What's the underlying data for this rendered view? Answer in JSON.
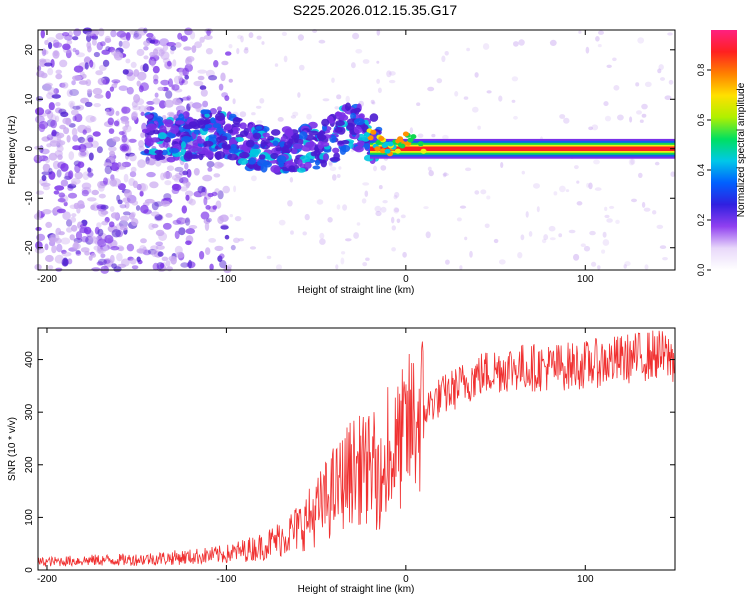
{
  "title": "S225.2026.012.15.35.G17",
  "colorbar": {
    "label": "Normalized spectral amplitude",
    "ticks": [
      "0.0",
      "0.2",
      "0.4",
      "0.6",
      "0.8"
    ],
    "tick_values": [
      0.0,
      0.2,
      0.4,
      0.6,
      0.8
    ],
    "range": [
      0,
      0.96
    ]
  },
  "chart_data": [
    {
      "type": "heatmap",
      "name": "spectrogram",
      "xlabel": "Height of straight line (km)",
      "ylabel": "Frequency (Hz)",
      "xlim": [
        -205,
        150
      ],
      "ylim": [
        -24.5,
        24
      ],
      "xticks": [
        -200,
        -100,
        0,
        100
      ],
      "xtick_labels": [
        "-200",
        "-100",
        "0",
        "100"
      ],
      "yticks": [
        -20,
        -10,
        0,
        10,
        20
      ],
      "ytick_labels": [
        "-20",
        "-10",
        "0",
        "10",
        "20"
      ],
      "ridge": {
        "x": [
          -145,
          -130,
          -115,
          -100,
          -85,
          -70,
          -55,
          -40,
          -30,
          -22,
          -15,
          -8,
          0,
          5,
          10,
          30,
          60,
          90,
          110,
          130,
          150
        ],
        "freq": [
          3,
          2,
          3,
          3,
          0,
          0,
          0,
          2,
          5,
          3,
          1,
          0,
          2,
          1,
          0,
          0,
          0,
          0,
          0,
          0.5,
          1
        ]
      },
      "colormap": [
        "#ffffff",
        "#c9a8f0",
        "#7a30e8",
        "#4a1ad0",
        "#1060f0",
        "#00c8e0",
        "#10d850",
        "#f0f010",
        "#ff9000",
        "#ff2020",
        "#ff20a0"
      ]
    },
    {
      "type": "line",
      "name": "snr",
      "xlabel": "Height of straight line (km)",
      "ylabel": "SNR (10 * v/v)",
      "xlim": [
        -205,
        150
      ],
      "ylim": [
        0,
        460
      ],
      "xticks": [
        -200,
        -100,
        0,
        100
      ],
      "xtick_labels": [
        "-200",
        "-100",
        "0",
        "100"
      ],
      "yticks": [
        0,
        100,
        200,
        300,
        400
      ],
      "ytick_labels": [
        "0",
        "100",
        "200",
        "300",
        "400"
      ],
      "color": "#f03030",
      "series": [
        {
          "name": "SNR",
          "x": [
            -205,
            -180,
            -150,
            -120,
            -100,
            -80,
            -70,
            -60,
            -50,
            -40,
            -30,
            -20,
            -15,
            -10,
            -5,
            0,
            5,
            10,
            15,
            20,
            30,
            40,
            50,
            60,
            80,
            100,
            120,
            140,
            150
          ],
          "y": [
            15,
            18,
            20,
            25,
            30,
            45,
            60,
            80,
            110,
            150,
            190,
            190,
            160,
            200,
            230,
            260,
            285,
            300,
            320,
            330,
            350,
            370,
            380,
            385,
            385,
            390,
            400,
            410,
            400
          ]
        }
      ]
    }
  ]
}
